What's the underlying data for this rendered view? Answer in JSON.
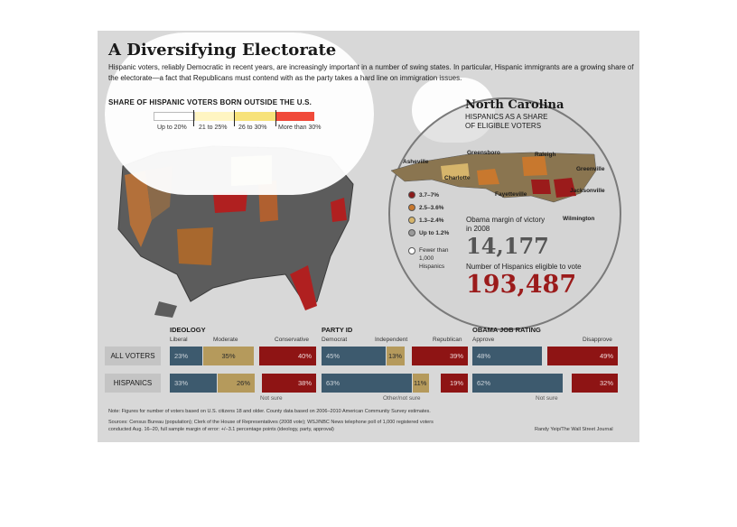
{
  "title": "A Diversifying Electorate",
  "subtitle": "Hispanic voters, reliably Democratic in recent years, are increasingly important in a number of swing states. In particular, Hispanic immigrants are a growing share of the electorate—a fact that Republicans must contend with as the party takes a hard line on immigration issues.",
  "map_legend": {
    "title": "SHARE OF HISPANIC VOTERS BORN OUTSIDE THE U.S.",
    "items": [
      {
        "label": "Up to 20%",
        "color": "#ffffff"
      },
      {
        "label": "21 to 25%",
        "color": "#fff5c2"
      },
      {
        "label": "26 to 30%",
        "color": "#f7e27a"
      },
      {
        "label": "More than 30%",
        "color": "#f04a3a"
      }
    ]
  },
  "nc": {
    "title": "North Carolina",
    "subtitle": "HISPANICS AS A SHARE OF ELIGIBLE VOTERS",
    "cities": [
      "Asheville",
      "Greensboro",
      "Raleigh",
      "Charlotte",
      "Greenville",
      "Fayetteville",
      "Jacksonville",
      "Wilmington"
    ],
    "legend": [
      {
        "label": "3.7–7%",
        "color": "#8b1a1a"
      },
      {
        "label": "2.5–3.6%",
        "color": "#c8782e"
      },
      {
        "label": "1.3–2.4%",
        "color": "#d6b56b"
      },
      {
        "label": "Up to 1.2%",
        "color": "#9a9a9a"
      },
      {
        "label": "Fewer than 1,000 Hispanics",
        "color": "#ffffff"
      }
    ],
    "margin_label": "Obama margin of victory in 2008",
    "margin_value": "14,177",
    "eligible_label": "Number of Hispanics eligible to vote",
    "eligible_value": "193,487"
  },
  "table": {
    "sections": [
      "IDEOLOGY",
      "PARTY ID",
      "OBAMA JOB RATING"
    ],
    "columns": {
      "ideology": [
        "Liberal",
        "Moderate",
        "Conservative"
      ],
      "party": [
        "Democrat",
        "Independent",
        "Republican"
      ],
      "rating": [
        "Approve",
        "Disapprove"
      ]
    },
    "rows": [
      {
        "label": "ALL VOTERS",
        "ideology": [
          "23%",
          "35%",
          "40%"
        ],
        "party": [
          "45%",
          "13%",
          "39%"
        ],
        "rating": [
          "48%",
          "49%"
        ]
      },
      {
        "label": "HISPANICS",
        "ideology": [
          "33%",
          "26%",
          "38%"
        ],
        "party": [
          "63%",
          "11%",
          "19%"
        ],
        "rating": [
          "62%",
          "32%"
        ]
      }
    ],
    "not_sure": "Not sure",
    "other_not_sure": "Other/not sure"
  },
  "footnotes": [
    "Note: Figures for number of voters based on U.S. citizens 18 and older. County data based on 2006–2010 American Community Survey estimates.",
    "Sources: Census Bureau (population); Clerk of the House of Representatives (2008 vote); WSJ/NBC News telephone poll of 1,000 registered voters",
    "conducted Aug. 16–20, full sample margin of error: +/−3.1 percentage points (ideology, party, approval)"
  ],
  "credit": "Randy Yeip/The Wall Street Journal",
  "colors": {
    "blue": "#3d5a6e",
    "tan": "#b59a5c",
    "red": "#8e1414",
    "dark_red": "#9b1b1b"
  }
}
